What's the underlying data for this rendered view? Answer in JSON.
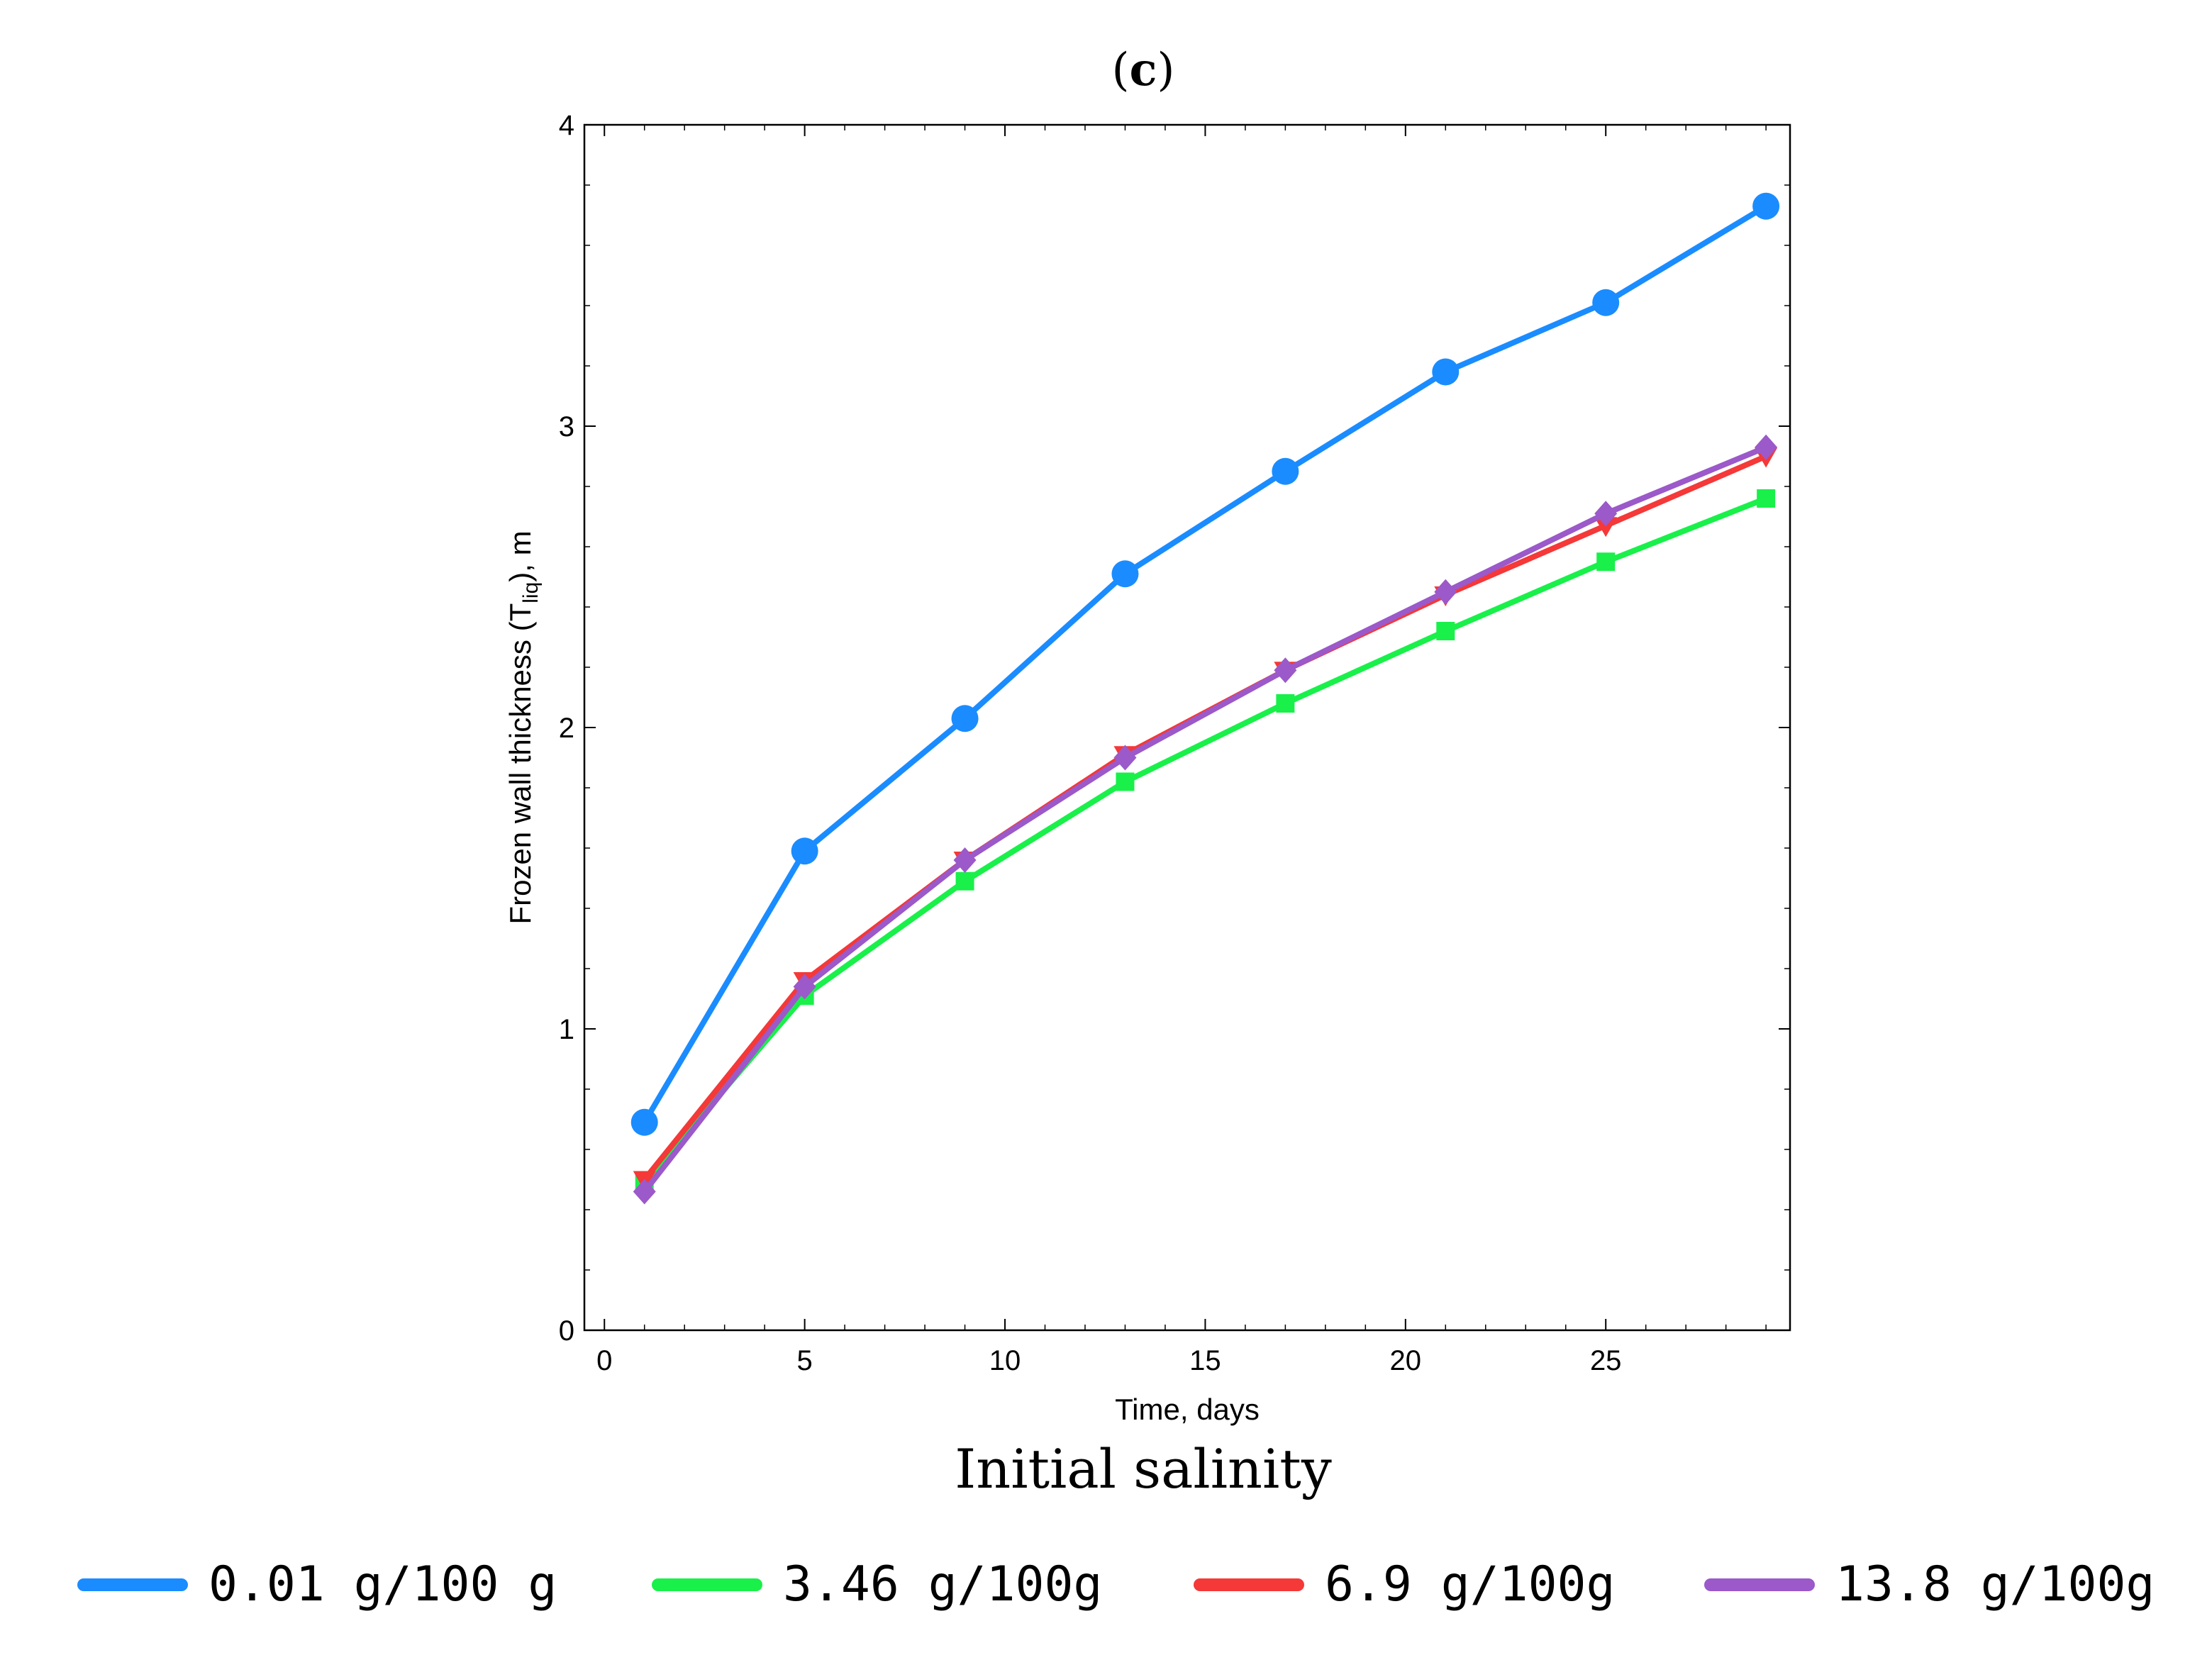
{
  "panel_label_open": "(",
  "panel_label_letter": "c",
  "panel_label_close": ")",
  "legend_title": "Initial salinity",
  "chart_data": {
    "type": "line",
    "title": "(c)",
    "xlabel": "Time, days",
    "ylabel_main": "Frozen wall thickness (T",
    "ylabel_sub": "liq",
    "ylabel_tail": "), m",
    "xlim": [
      -0.5,
      29.6
    ],
    "ylim": [
      0,
      4
    ],
    "xticks": [
      0,
      5,
      10,
      15,
      20,
      25
    ],
    "yticks": [
      0,
      1,
      2,
      3,
      4
    ],
    "x": [
      1,
      5,
      9,
      13,
      17,
      21,
      25,
      29
    ],
    "series": [
      {
        "name": "0.01 g/100 g",
        "color": "#1a8cff",
        "marker": "circle",
        "values": [
          0.69,
          1.59,
          2.03,
          2.51,
          2.85,
          3.18,
          3.41,
          3.73
        ]
      },
      {
        "name": "3.46 g/100g",
        "color": "#19f04a",
        "marker": "square",
        "values": [
          0.49,
          1.11,
          1.49,
          1.82,
          2.08,
          2.32,
          2.55,
          2.76
        ]
      },
      {
        "name": "6.9 g/100g",
        "color": "#f53838",
        "marker": "triangle-down",
        "values": [
          0.5,
          1.16,
          1.56,
          1.91,
          2.19,
          2.44,
          2.67,
          2.9
        ]
      },
      {
        "name": "13.8 g/100g",
        "color": "#9b59c9",
        "marker": "diamond",
        "values": [
          0.46,
          1.14,
          1.56,
          1.9,
          2.19,
          2.45,
          2.71,
          2.93
        ]
      }
    ],
    "legend_placement": "bottom"
  }
}
